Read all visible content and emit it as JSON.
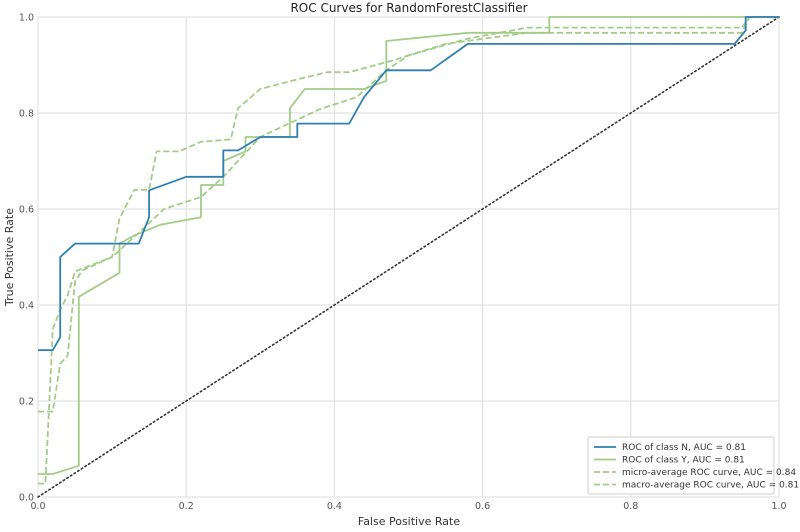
{
  "chart_data": {
    "type": "line",
    "title": "ROC Curves for RandomForestClassifier",
    "xlabel": "False Positive Rate",
    "ylabel": "True Positive Rate",
    "xlim": [
      0,
      1
    ],
    "ylim": [
      0,
      1
    ],
    "x_ticks": [
      "0.0",
      "0.2",
      "0.4",
      "0.6",
      "0.8",
      "1.0"
    ],
    "y_ticks": [
      "0.0",
      "0.2",
      "0.4",
      "0.6",
      "0.8",
      "1.0"
    ],
    "grid": true,
    "legend_position": "lower-right",
    "diagonal": {
      "style": "dotted",
      "color": "#333333",
      "points": [
        [
          0,
          0
        ],
        [
          1,
          1
        ]
      ]
    },
    "series": [
      {
        "name": "ROC of class N, AUC = 0.81",
        "color": "#2f7fb3",
        "style": "solid",
        "points": [
          [
            0,
            0.306
          ],
          [
            0.02,
            0.306
          ],
          [
            0.03,
            0.333
          ],
          [
            0.03,
            0.5
          ],
          [
            0.05,
            0.528
          ],
          [
            0.136,
            0.528
          ],
          [
            0.15,
            0.583
          ],
          [
            0.15,
            0.639
          ],
          [
            0.2,
            0.667
          ],
          [
            0.25,
            0.667
          ],
          [
            0.25,
            0.722
          ],
          [
            0.27,
            0.722
          ],
          [
            0.3,
            0.75
          ],
          [
            0.35,
            0.75
          ],
          [
            0.35,
            0.778
          ],
          [
            0.42,
            0.778
          ],
          [
            0.44,
            0.833
          ],
          [
            0.47,
            0.889
          ],
          [
            0.53,
            0.889
          ],
          [
            0.58,
            0.944
          ],
          [
            0.94,
            0.944
          ],
          [
            0.955,
            0.972
          ],
          [
            0.955,
            1.0
          ],
          [
            1.0,
            1.0
          ]
        ]
      },
      {
        "name": "ROC of class Y, AUC = 0.81",
        "color": "#a3cc88",
        "style": "solid",
        "points": [
          [
            0,
            0.048
          ],
          [
            0.02,
            0.048
          ],
          [
            0.055,
            0.065
          ],
          [
            0.055,
            0.417
          ],
          [
            0.11,
            0.467
          ],
          [
            0.11,
            0.528
          ],
          [
            0.13,
            0.545
          ],
          [
            0.165,
            0.567
          ],
          [
            0.22,
            0.583
          ],
          [
            0.22,
            0.65
          ],
          [
            0.25,
            0.65
          ],
          [
            0.25,
            0.7
          ],
          [
            0.28,
            0.72
          ],
          [
            0.28,
            0.75
          ],
          [
            0.34,
            0.75
          ],
          [
            0.34,
            0.81
          ],
          [
            0.36,
            0.85
          ],
          [
            0.44,
            0.85
          ],
          [
            0.47,
            0.867
          ],
          [
            0.47,
            0.95
          ],
          [
            0.58,
            0.967
          ],
          [
            0.69,
            0.967
          ],
          [
            0.69,
            1.0
          ],
          [
            1.0,
            1.0
          ]
        ]
      },
      {
        "name": "micro-average ROC curve, AUC = 0.84",
        "color": "#a3cc88",
        "style": "dashed",
        "points": [
          [
            0,
            0.178
          ],
          [
            0.02,
            0.178
          ],
          [
            0.03,
            0.278
          ],
          [
            0.04,
            0.294
          ],
          [
            0.05,
            0.45
          ],
          [
            0.06,
            0.472
          ],
          [
            0.1,
            0.5
          ],
          [
            0.14,
            0.556
          ],
          [
            0.17,
            0.6
          ],
          [
            0.22,
            0.625
          ],
          [
            0.25,
            0.667
          ],
          [
            0.3,
            0.75
          ],
          [
            0.38,
            0.808
          ],
          [
            0.43,
            0.833
          ],
          [
            0.47,
            0.889
          ],
          [
            0.5,
            0.92
          ],
          [
            0.55,
            0.944
          ],
          [
            0.66,
            0.967
          ],
          [
            0.95,
            0.967
          ],
          [
            0.96,
            1.0
          ],
          [
            1.0,
            1.0
          ]
        ]
      },
      {
        "name": "macro-average ROC curve, AUC = 0.81",
        "color": "#a3cc88",
        "style": "dashed",
        "points": [
          [
            0,
            0.028
          ],
          [
            0.01,
            0.028
          ],
          [
            0.02,
            0.35
          ],
          [
            0.03,
            0.39
          ],
          [
            0.04,
            0.42
          ],
          [
            0.05,
            0.47
          ],
          [
            0.1,
            0.5
          ],
          [
            0.11,
            0.58
          ],
          [
            0.13,
            0.64
          ],
          [
            0.15,
            0.64
          ],
          [
            0.16,
            0.72
          ],
          [
            0.19,
            0.72
          ],
          [
            0.22,
            0.74
          ],
          [
            0.26,
            0.745
          ],
          [
            0.27,
            0.81
          ],
          [
            0.3,
            0.85
          ],
          [
            0.35,
            0.87
          ],
          [
            0.39,
            0.885
          ],
          [
            0.42,
            0.885
          ],
          [
            0.48,
            0.91
          ],
          [
            0.5,
            0.92
          ],
          [
            0.58,
            0.955
          ],
          [
            0.66,
            0.978
          ],
          [
            0.95,
            0.978
          ],
          [
            0.96,
            1.0
          ],
          [
            1.0,
            1.0
          ]
        ]
      }
    ]
  }
}
